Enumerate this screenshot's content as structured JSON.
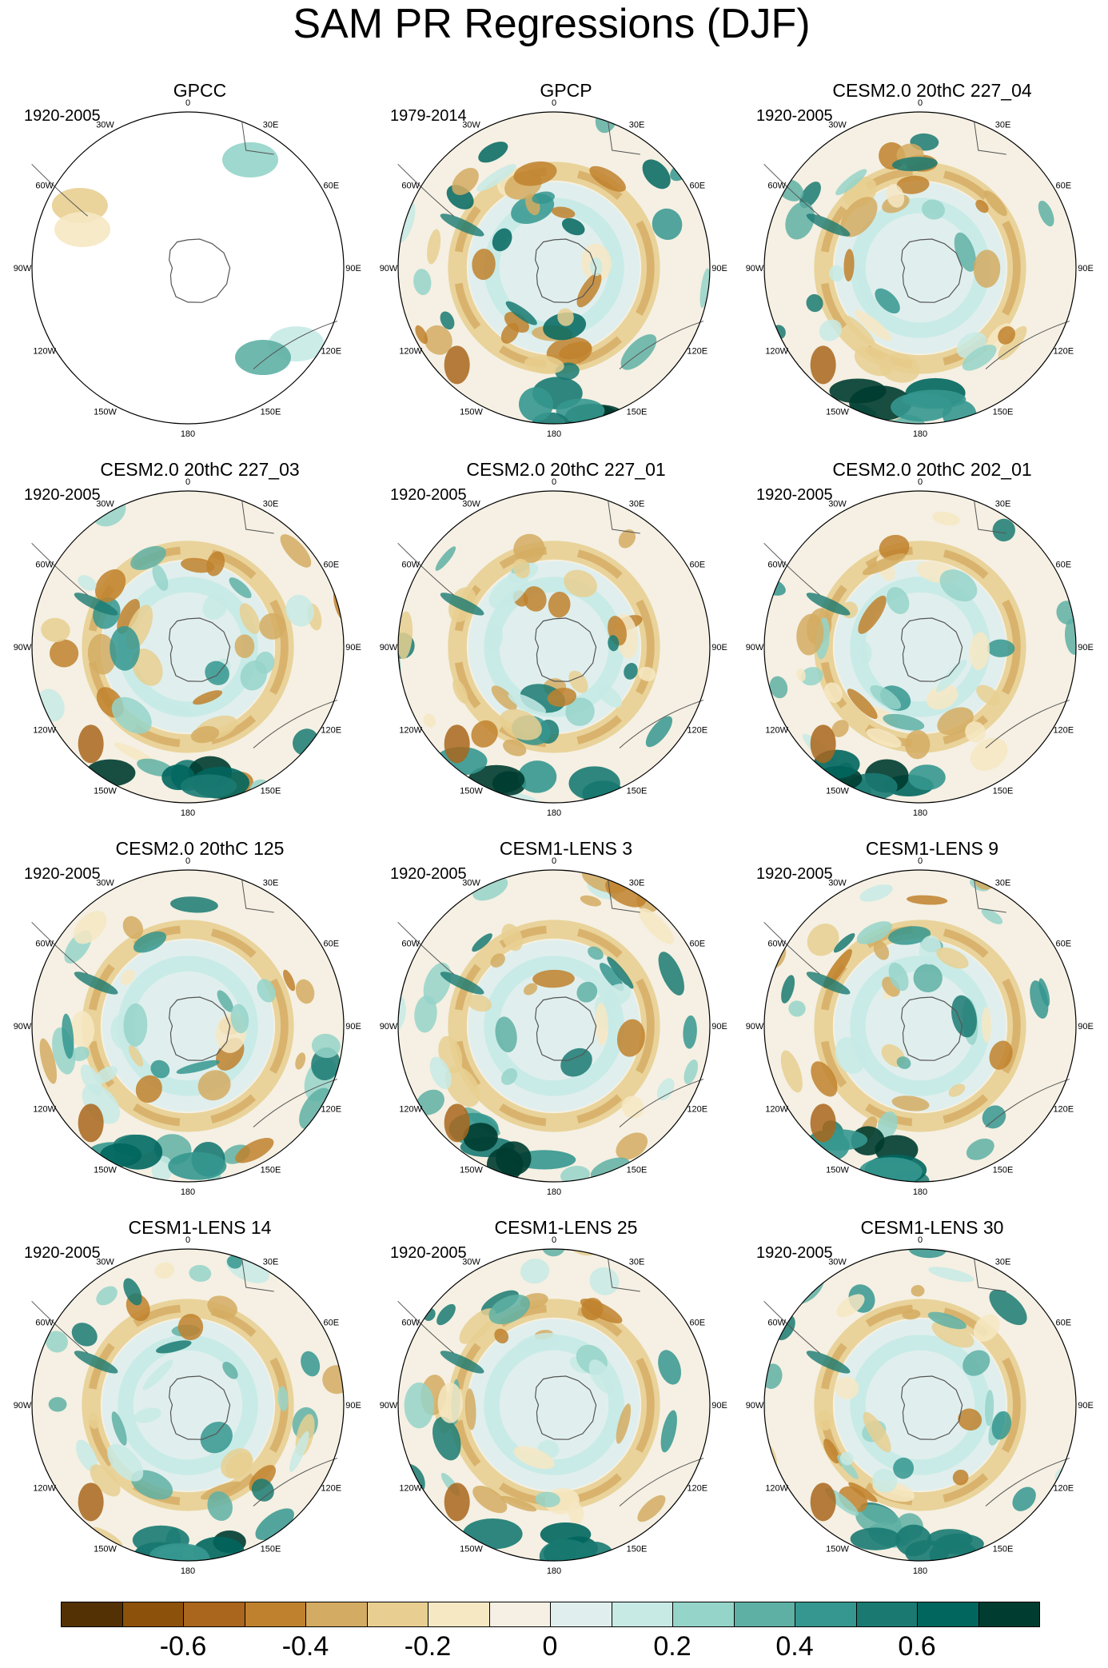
{
  "title": "SAM PR Regressions (DJF)",
  "lon_labels": [
    "0",
    "30E",
    "60E",
    "90E",
    "120E",
    "150E",
    "180",
    "150W",
    "120W",
    "90W",
    "60W",
    "30W"
  ],
  "panels": [
    {
      "title": "GPCC",
      "period": "1920-2005",
      "type": "obs_gpcc"
    },
    {
      "title": "GPCP",
      "period": "1979-2014",
      "type": "obs_gpcp"
    },
    {
      "title": "CESM2.0 20thC 227_04",
      "period": "1920-2005",
      "type": "model"
    },
    {
      "title": "CESM2.0 20thC 227_03",
      "period": "1920-2005",
      "type": "model"
    },
    {
      "title": "CESM2.0 20thC 227_01",
      "period": "1920-2005",
      "type": "model"
    },
    {
      "title": "CESM2.0 20thC 202_01",
      "period": "1920-2005",
      "type": "model"
    },
    {
      "title": "CESM2.0 20thC 125",
      "period": "1920-2005",
      "type": "model"
    },
    {
      "title": "CESM1-LENS 3",
      "period": "1920-2005",
      "type": "model"
    },
    {
      "title": "CESM1-LENS 9",
      "period": "1920-2005",
      "type": "model"
    },
    {
      "title": "CESM1-LENS 14",
      "period": "1920-2005",
      "type": "model"
    },
    {
      "title": "CESM1-LENS 25",
      "period": "1920-2005",
      "type": "model"
    },
    {
      "title": "CESM1-LENS 30",
      "period": "1920-2005",
      "type": "model"
    }
  ],
  "colorbar": {
    "colors": [
      "#543005",
      "#8c510a",
      "#a9661c",
      "#bf812d",
      "#d4ab62",
      "#e8cf91",
      "#f6e8c3",
      "#f5f0e3",
      "#e0efed",
      "#c7eae5",
      "#95d4c9",
      "#5fb0a4",
      "#35978f",
      "#1a7a72",
      "#01665e",
      "#003c30"
    ],
    "tick_labels": [
      "-0.6",
      "-0.4",
      "-0.2",
      "0",
      "0.2",
      "0.4",
      "0.6"
    ],
    "tick_values": [
      -0.6,
      -0.4,
      -0.2,
      0,
      0.2,
      0.4,
      0.6
    ],
    "min": -0.8,
    "max": 0.8
  }
}
